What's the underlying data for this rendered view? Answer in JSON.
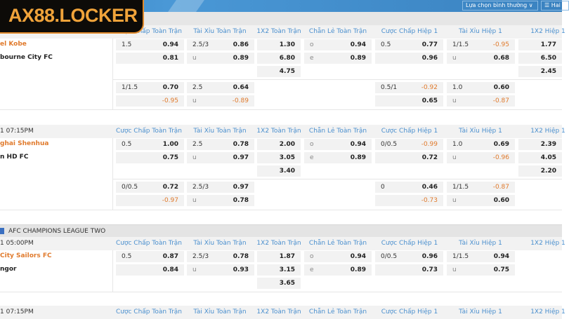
{
  "logo_text": "AX88.LOCKER",
  "toolbar": {
    "view_select": "Lựa chọn bình thường ∨",
    "view_select_icon": "filter-icon",
    "double_view": "☰ Hai I"
  },
  "columns": [
    "Cược Chấp Toàn Trận",
    "Tài Xỉu Toàn Trận",
    "1X2 Toàn Trận",
    "Chẵn Lẻ Toàn Trận",
    "Cược Chấp Hiệp 1",
    "Tài Xỉu Hiệp 1",
    "1X2 Hiệp 1"
  ],
  "colors": {
    "accent": "#4a8fce",
    "negative": "#e07a2c",
    "home_team": "#e07a2c"
  },
  "matches": [
    {
      "time": "",
      "home": "el Kobe",
      "away": "bourne City FC",
      "main": {
        "ah": [
          [
            "1.5",
            "0.94"
          ],
          [
            "",
            "0.81"
          ]
        ],
        "ou": [
          [
            "2.5/3",
            "0.86"
          ],
          [
            "u",
            "0.89"
          ]
        ],
        "x12": [
          "1.30",
          "6.80",
          "4.75"
        ],
        "oe": [
          [
            "o",
            "0.94"
          ],
          [
            "e",
            "0.89"
          ]
        ],
        "ah1": [
          [
            "0.5",
            "0.77"
          ],
          [
            "",
            "0.96"
          ]
        ],
        "ou1": [
          [
            "1/1.5",
            "-0.95"
          ],
          [
            "u",
            "0.68"
          ]
        ],
        "x12h1": [
          "1.77",
          "6.50",
          "2.45"
        ]
      },
      "alt": {
        "ah": [
          [
            "1/1.5",
            "0.70"
          ],
          [
            "",
            "-0.95"
          ]
        ],
        "ou": [
          [
            "2.5",
            "0.64"
          ],
          [
            "u",
            "-0.89"
          ]
        ],
        "ah1": [
          [
            "0.5/1",
            "-0.92"
          ],
          [
            "",
            "0.65"
          ]
        ],
        "ou1": [
          [
            "1.0",
            "0.60"
          ],
          [
            "u",
            "-0.87"
          ]
        ]
      }
    },
    {
      "time": "1 07:15PM",
      "home": "ghai Shenhua",
      "away": "n HD FC",
      "main": {
        "ah": [
          [
            "0.5",
            "1.00"
          ],
          [
            "",
            "0.75"
          ]
        ],
        "ou": [
          [
            "2.5",
            "0.78"
          ],
          [
            "u",
            "0.97"
          ]
        ],
        "x12": [
          "2.00",
          "3.05",
          "3.40"
        ],
        "oe": [
          [
            "o",
            "0.94"
          ],
          [
            "e",
            "0.89"
          ]
        ],
        "ah1": [
          [
            "0/0.5",
            "-0.99"
          ],
          [
            "",
            "0.72"
          ]
        ],
        "ou1": [
          [
            "1.0",
            "0.69"
          ],
          [
            "u",
            "-0.96"
          ]
        ],
        "x12h1": [
          "2.39",
          "4.05",
          "2.20"
        ]
      },
      "alt": {
        "ah": [
          [
            "0/0.5",
            "0.72"
          ],
          [
            "",
            "-0.97"
          ]
        ],
        "ou": [
          [
            "2.5/3",
            "0.97"
          ],
          [
            "u",
            "0.78"
          ]
        ],
        "ah1": [
          [
            "0",
            "0.46"
          ],
          [
            "",
            "-0.73"
          ]
        ],
        "ou1": [
          [
            "1/1.5",
            "-0.87"
          ],
          [
            "u",
            "0.60"
          ]
        ]
      }
    },
    {
      "league": "AFC CHAMPIONS LEAGUE TWO",
      "time": "1 05:00PM",
      "home": "City Sailors FC",
      "away": "ngor",
      "main": {
        "ah": [
          [
            "0.5",
            "0.87"
          ],
          [
            "",
            "0.84"
          ]
        ],
        "ou": [
          [
            "2.5/3",
            "0.78"
          ],
          [
            "u",
            "0.93"
          ]
        ],
        "x12": [
          "1.87",
          "3.15",
          "3.65"
        ],
        "oe": [
          [
            "o",
            "0.94"
          ],
          [
            "e",
            "0.89"
          ]
        ],
        "ah1": [
          [
            "0/0.5",
            "0.96"
          ],
          [
            "",
            "0.73"
          ]
        ],
        "ou1": [
          [
            "1/1.5",
            "0.94"
          ],
          [
            "u",
            "0.75"
          ]
        ],
        "x12h1": []
      }
    },
    {
      "time": "1 07:15PM",
      "headerOnly": true
    }
  ]
}
